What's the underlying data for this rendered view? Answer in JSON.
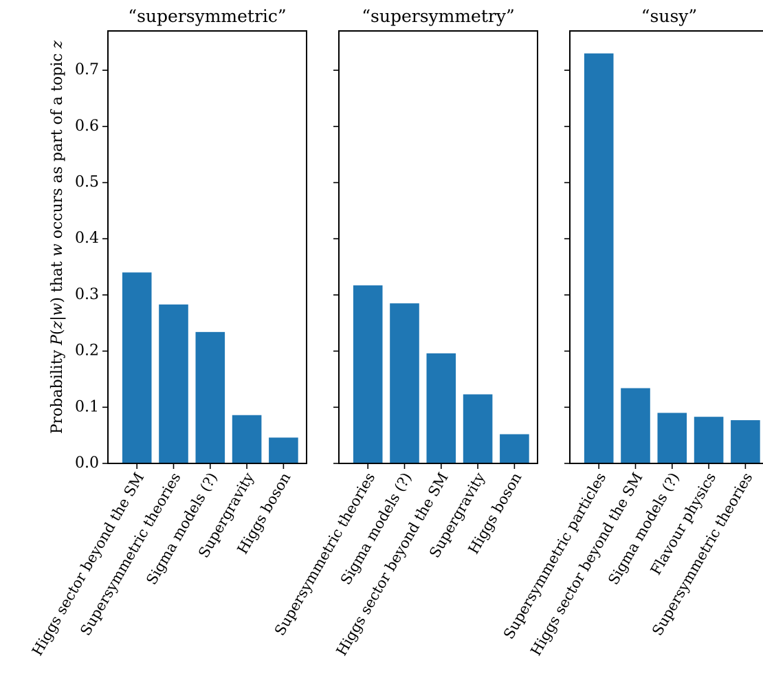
{
  "figure": {
    "ylabel_parts": [
      {
        "text": "Probability ",
        "italic": false
      },
      {
        "text": "P",
        "italic": true
      },
      {
        "text": "(",
        "italic": false
      },
      {
        "text": "z",
        "italic": true
      },
      {
        "text": "|",
        "italic": false
      },
      {
        "text": "w",
        "italic": true
      },
      {
        "text": ") that ",
        "italic": false
      },
      {
        "text": "w",
        "italic": true
      },
      {
        "text": " occurs as part of a topic ",
        "italic": false
      },
      {
        "text": "z",
        "italic": true
      }
    ],
    "bar_color": "#1f77b4"
  },
  "chart_data": [
    {
      "type": "bar",
      "title": "“supersymmetric”",
      "ylabel": "Probability P(z|w) that w occurs as part of a topic z",
      "ylim": [
        0,
        0.77
      ],
      "yticks": [
        "0.0",
        "0.1",
        "0.2",
        "0.3",
        "0.4",
        "0.5",
        "0.6",
        "0.7"
      ],
      "categories": [
        "Higgs sector beyond the SM",
        "Supersymmetric theories",
        "Sigma models (?)",
        "Supergravity",
        "Higgs boson"
      ],
      "values": [
        0.34,
        0.283,
        0.234,
        0.086,
        0.046
      ],
      "grid": false
    },
    {
      "type": "bar",
      "title": "“supersymmetry”",
      "ylim": [
        0,
        0.77
      ],
      "categories": [
        "Supersymmetric theories",
        "Sigma models (?)",
        "Higgs sector beyond the SM",
        "Supergravity",
        "Higgs boson"
      ],
      "values": [
        0.317,
        0.285,
        0.196,
        0.123,
        0.052
      ],
      "grid": false
    },
    {
      "type": "bar",
      "title": "“susy”",
      "ylim": [
        0,
        0.77
      ],
      "categories": [
        "Supersymmetric particles",
        "Higgs sector beyond the SM",
        "Sigma models (?)",
        "Flavour physics",
        "Supersymmetric theories"
      ],
      "values": [
        0.73,
        0.134,
        0.09,
        0.083,
        0.077
      ],
      "grid": false
    }
  ]
}
